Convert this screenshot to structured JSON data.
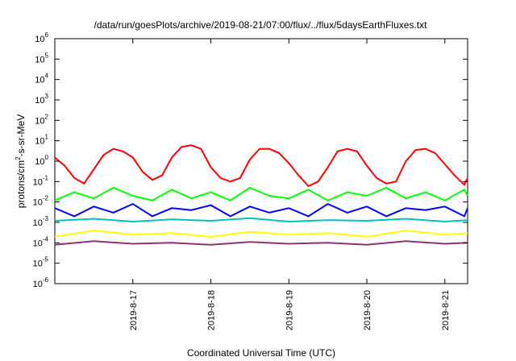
{
  "chart_data": {
    "type": "line",
    "title": "/data/run/goesPlots/archive/2019-08-21/07:00/flux/../flux/5daysEarthFluxes.txt",
    "xlabel": "Coordinated Universal Time (UTC)",
    "ylabel": "protons/cm2-s-sr-MeV",
    "ylabel_parts": {
      "prefix": "protons/cm",
      "sup": "2",
      "suffix": "-s-sr-MeV"
    },
    "yscale": "log",
    "ylim": [
      1e-06,
      1000000.0
    ],
    "yticks": [
      {
        "base": "10",
        "exp": "-6"
      },
      {
        "base": "10",
        "exp": "-5"
      },
      {
        "base": "10",
        "exp": "-4"
      },
      {
        "base": "10",
        "exp": "-3"
      },
      {
        "base": "10",
        "exp": "-2"
      },
      {
        "base": "10",
        "exp": "-1"
      },
      {
        "base": "10",
        "exp": "0"
      },
      {
        "base": "10",
        "exp": "1"
      },
      {
        "base": "10",
        "exp": "2"
      },
      {
        "base": "10",
        "exp": "3"
      },
      {
        "base": "10",
        "exp": "4"
      },
      {
        "base": "10",
        "exp": "5"
      },
      {
        "base": "10",
        "exp": "6"
      }
    ],
    "xlim": [
      "2019-08-16T00:00",
      "2019-08-21T07:00"
    ],
    "xticks": [
      {
        "at": "2019-08-17T00:00",
        "label": "2019-8-17"
      },
      {
        "at": "2019-08-18T00:00",
        "label": "2019-8-18"
      },
      {
        "at": "2019-08-19T00:00",
        "label": "2019-8-19"
      },
      {
        "at": "2019-08-20T00:00",
        "label": "2019-8-20"
      },
      {
        "at": "2019-08-21T00:00",
        "label": "2019-8-21"
      }
    ],
    "grid": false,
    "series": [
      {
        "color": "#ff0000",
        "x": [
          "2019-08-16T00:00",
          "2019-08-16T03:00",
          "2019-08-16T06:00",
          "2019-08-16T09:00",
          "2019-08-16T12:00",
          "2019-08-16T15:00",
          "2019-08-16T18:00",
          "2019-08-16T21:00",
          "2019-08-17T00:00",
          "2019-08-17T03:00",
          "2019-08-17T06:00",
          "2019-08-17T09:00",
          "2019-08-17T12:00",
          "2019-08-17T15:00",
          "2019-08-17T18:00",
          "2019-08-17T21:00",
          "2019-08-18T00:00",
          "2019-08-18T03:00",
          "2019-08-18T06:00",
          "2019-08-18T09:00",
          "2019-08-18T12:00",
          "2019-08-18T15:00",
          "2019-08-18T18:00",
          "2019-08-18T21:00",
          "2019-08-19T00:00",
          "2019-08-19T03:00",
          "2019-08-19T06:00",
          "2019-08-19T09:00",
          "2019-08-19T12:00",
          "2019-08-19T15:00",
          "2019-08-19T18:00",
          "2019-08-19T21:00",
          "2019-08-20T00:00",
          "2019-08-20T03:00",
          "2019-08-20T06:00",
          "2019-08-20T09:00",
          "2019-08-20T12:00",
          "2019-08-20T15:00",
          "2019-08-20T18:00",
          "2019-08-20T21:00",
          "2019-08-21T00:00",
          "2019-08-21T03:00",
          "2019-08-21T06:00",
          "2019-08-21T07:00"
        ],
        "y": [
          1.5,
          0.6,
          0.15,
          0.08,
          0.4,
          2,
          4,
          3,
          1.5,
          0.3,
          0.12,
          0.2,
          1.5,
          5,
          6,
          4,
          0.5,
          0.15,
          0.1,
          0.15,
          1.2,
          4,
          4,
          2.5,
          0.8,
          0.2,
          0.06,
          0.1,
          0.5,
          3,
          4,
          3,
          0.6,
          0.15,
          0.08,
          0.1,
          1,
          3.5,
          4,
          2.5,
          0.7,
          0.2,
          0.07,
          0.15
        ]
      },
      {
        "color": "#00ff00",
        "x": [
          "2019-08-16T00:00",
          "2019-08-16T06:00",
          "2019-08-16T12:00",
          "2019-08-16T18:00",
          "2019-08-17T00:00",
          "2019-08-17T06:00",
          "2019-08-17T12:00",
          "2019-08-17T18:00",
          "2019-08-18T00:00",
          "2019-08-18T06:00",
          "2019-08-18T12:00",
          "2019-08-18T18:00",
          "2019-08-19T00:00",
          "2019-08-19T06:00",
          "2019-08-19T12:00",
          "2019-08-19T18:00",
          "2019-08-20T00:00",
          "2019-08-20T06:00",
          "2019-08-20T12:00",
          "2019-08-20T18:00",
          "2019-08-21T00:00",
          "2019-08-21T06:00",
          "2019-08-21T07:00"
        ],
        "y": [
          0.012,
          0.03,
          0.015,
          0.05,
          0.02,
          0.012,
          0.04,
          0.015,
          0.03,
          0.012,
          0.05,
          0.02,
          0.015,
          0.04,
          0.012,
          0.03,
          0.02,
          0.05,
          0.015,
          0.03,
          0.012,
          0.04,
          0.02
        ]
      },
      {
        "color": "#0000ff",
        "x": [
          "2019-08-16T00:00",
          "2019-08-16T06:00",
          "2019-08-16T12:00",
          "2019-08-16T18:00",
          "2019-08-17T00:00",
          "2019-08-17T06:00",
          "2019-08-17T12:00",
          "2019-08-17T18:00",
          "2019-08-18T00:00",
          "2019-08-18T06:00",
          "2019-08-18T12:00",
          "2019-08-18T18:00",
          "2019-08-19T00:00",
          "2019-08-19T06:00",
          "2019-08-19T12:00",
          "2019-08-19T18:00",
          "2019-08-20T00:00",
          "2019-08-20T06:00",
          "2019-08-20T12:00",
          "2019-08-20T18:00",
          "2019-08-21T00:00",
          "2019-08-21T06:00",
          "2019-08-21T07:00"
        ],
        "y": [
          0.005,
          0.002,
          0.006,
          0.003,
          0.008,
          0.002,
          0.005,
          0.004,
          0.007,
          0.002,
          0.006,
          0.003,
          0.005,
          0.002,
          0.008,
          0.003,
          0.006,
          0.002,
          0.005,
          0.004,
          0.006,
          0.002,
          0.005
        ]
      },
      {
        "color": "#00c0c0",
        "x": [
          "2019-08-16T00:00",
          "2019-08-16T12:00",
          "2019-08-17T00:00",
          "2019-08-17T12:00",
          "2019-08-18T00:00",
          "2019-08-18T12:00",
          "2019-08-19T00:00",
          "2019-08-19T12:00",
          "2019-08-20T00:00",
          "2019-08-20T12:00",
          "2019-08-21T00:00",
          "2019-08-21T07:00"
        ],
        "y": [
          0.0012,
          0.0015,
          0.0011,
          0.0014,
          0.0012,
          0.0016,
          0.0011,
          0.0013,
          0.0012,
          0.0015,
          0.0011,
          0.0013
        ]
      },
      {
        "color": "#ffff00",
        "x": [
          "2019-08-16T00:00",
          "2019-08-16T12:00",
          "2019-08-17T00:00",
          "2019-08-17T12:00",
          "2019-08-18T00:00",
          "2019-08-18T12:00",
          "2019-08-19T00:00",
          "2019-08-19T12:00",
          "2019-08-20T00:00",
          "2019-08-20T12:00",
          "2019-08-21T00:00",
          "2019-08-21T07:00"
        ],
        "y": [
          0.0002,
          0.0004,
          0.00025,
          0.0003,
          0.0002,
          0.00035,
          0.00025,
          0.0003,
          0.0002,
          0.0004,
          0.00025,
          0.0003
        ]
      },
      {
        "color": "#903070",
        "x": [
          "2019-08-16T00:00",
          "2019-08-16T12:00",
          "2019-08-17T00:00",
          "2019-08-17T12:00",
          "2019-08-18T00:00",
          "2019-08-18T12:00",
          "2019-08-19T00:00",
          "2019-08-19T12:00",
          "2019-08-20T00:00",
          "2019-08-20T12:00",
          "2019-08-21T00:00",
          "2019-08-21T07:00"
        ],
        "y": [
          8e-05,
          0.00012,
          9e-05,
          0.0001,
          8e-05,
          0.00011,
          9e-05,
          0.0001,
          8e-05,
          0.00012,
          9e-05,
          0.0001
        ]
      }
    ]
  }
}
